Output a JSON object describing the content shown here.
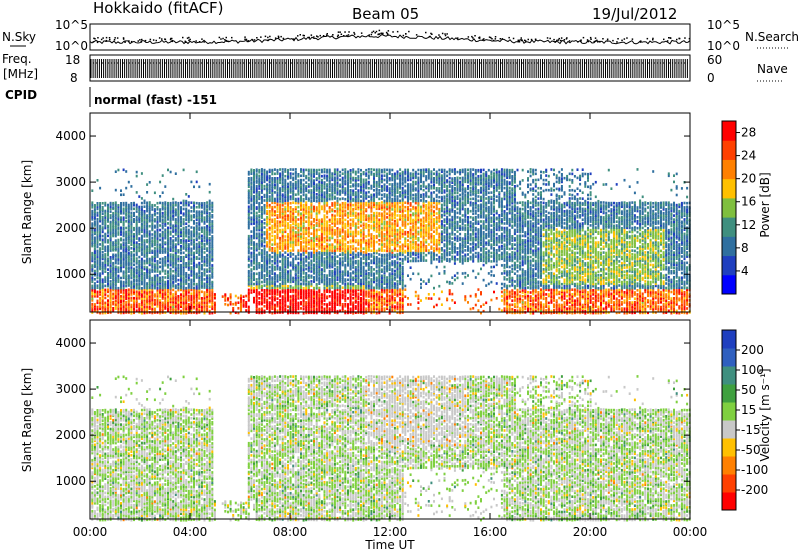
{
  "header": {
    "station": "Hokkaido (fitACF)",
    "beam": "Beam 05",
    "date": "19/Jul/2012"
  },
  "top_panels": {
    "nsky_label": "N.Sky",
    "nsearch_label": "N.Search",
    "count_ticks": [
      "10^5",
      "10^0"
    ],
    "freq_label_line1": "Freq.",
    "freq_label_line2": "[MHz]",
    "freq_ticks": [
      "18",
      "8"
    ],
    "nave_label": "Nave",
    "nave_ticks": [
      "60",
      "0"
    ],
    "cpid_label": "CPID",
    "cpid_value": "normal (fast) -151"
  },
  "chart_data": [
    {
      "type": "heatmap",
      "title": "",
      "xlabel": "",
      "ylabel": "Slant Range [km]",
      "ylim": [
        180,
        4500
      ],
      "xlim": [
        0,
        24
      ],
      "y_ticks": [
        "1000",
        "2000",
        "3000",
        "4000"
      ],
      "colorbar": {
        "label": "Power [dB]",
        "range": [
          0,
          30
        ],
        "ticks": [
          "4",
          "8",
          "12",
          "16",
          "20",
          "24",
          "28"
        ],
        "colors": [
          "#0000ff",
          "#1f3fbf",
          "#2f6f9f",
          "#3f8f7f",
          "#7fbf3f",
          "#ffc000",
          "#ff8000",
          "#ff4000",
          "#ff0000"
        ]
      }
    },
    {
      "type": "heatmap",
      "title": "",
      "xlabel": "Time UT",
      "ylabel": "Slant Range [km]",
      "ylim": [
        180,
        4500
      ],
      "xlim": [
        0,
        24
      ],
      "x_ticks": [
        "00:00",
        "04:00",
        "08:00",
        "12:00",
        "16:00",
        "20:00",
        "00:00"
      ],
      "y_ticks": [
        "1000",
        "2000",
        "3000",
        "4000"
      ],
      "colorbar": {
        "label": "Velocity [m s⁻¹]",
        "range": [
          -250,
          250
        ],
        "ticks": [
          "200",
          "100",
          "50",
          "15",
          "-15",
          "-50",
          "-100",
          "-200"
        ],
        "colors": [
          "#ff0000",
          "#ff4000",
          "#ff8000",
          "#ffc000",
          "#c8c8c8",
          "#7fd040",
          "#3fa03f",
          "#3f8f7f",
          "#2f5fbf",
          "#1f3fbf"
        ]
      }
    }
  ]
}
